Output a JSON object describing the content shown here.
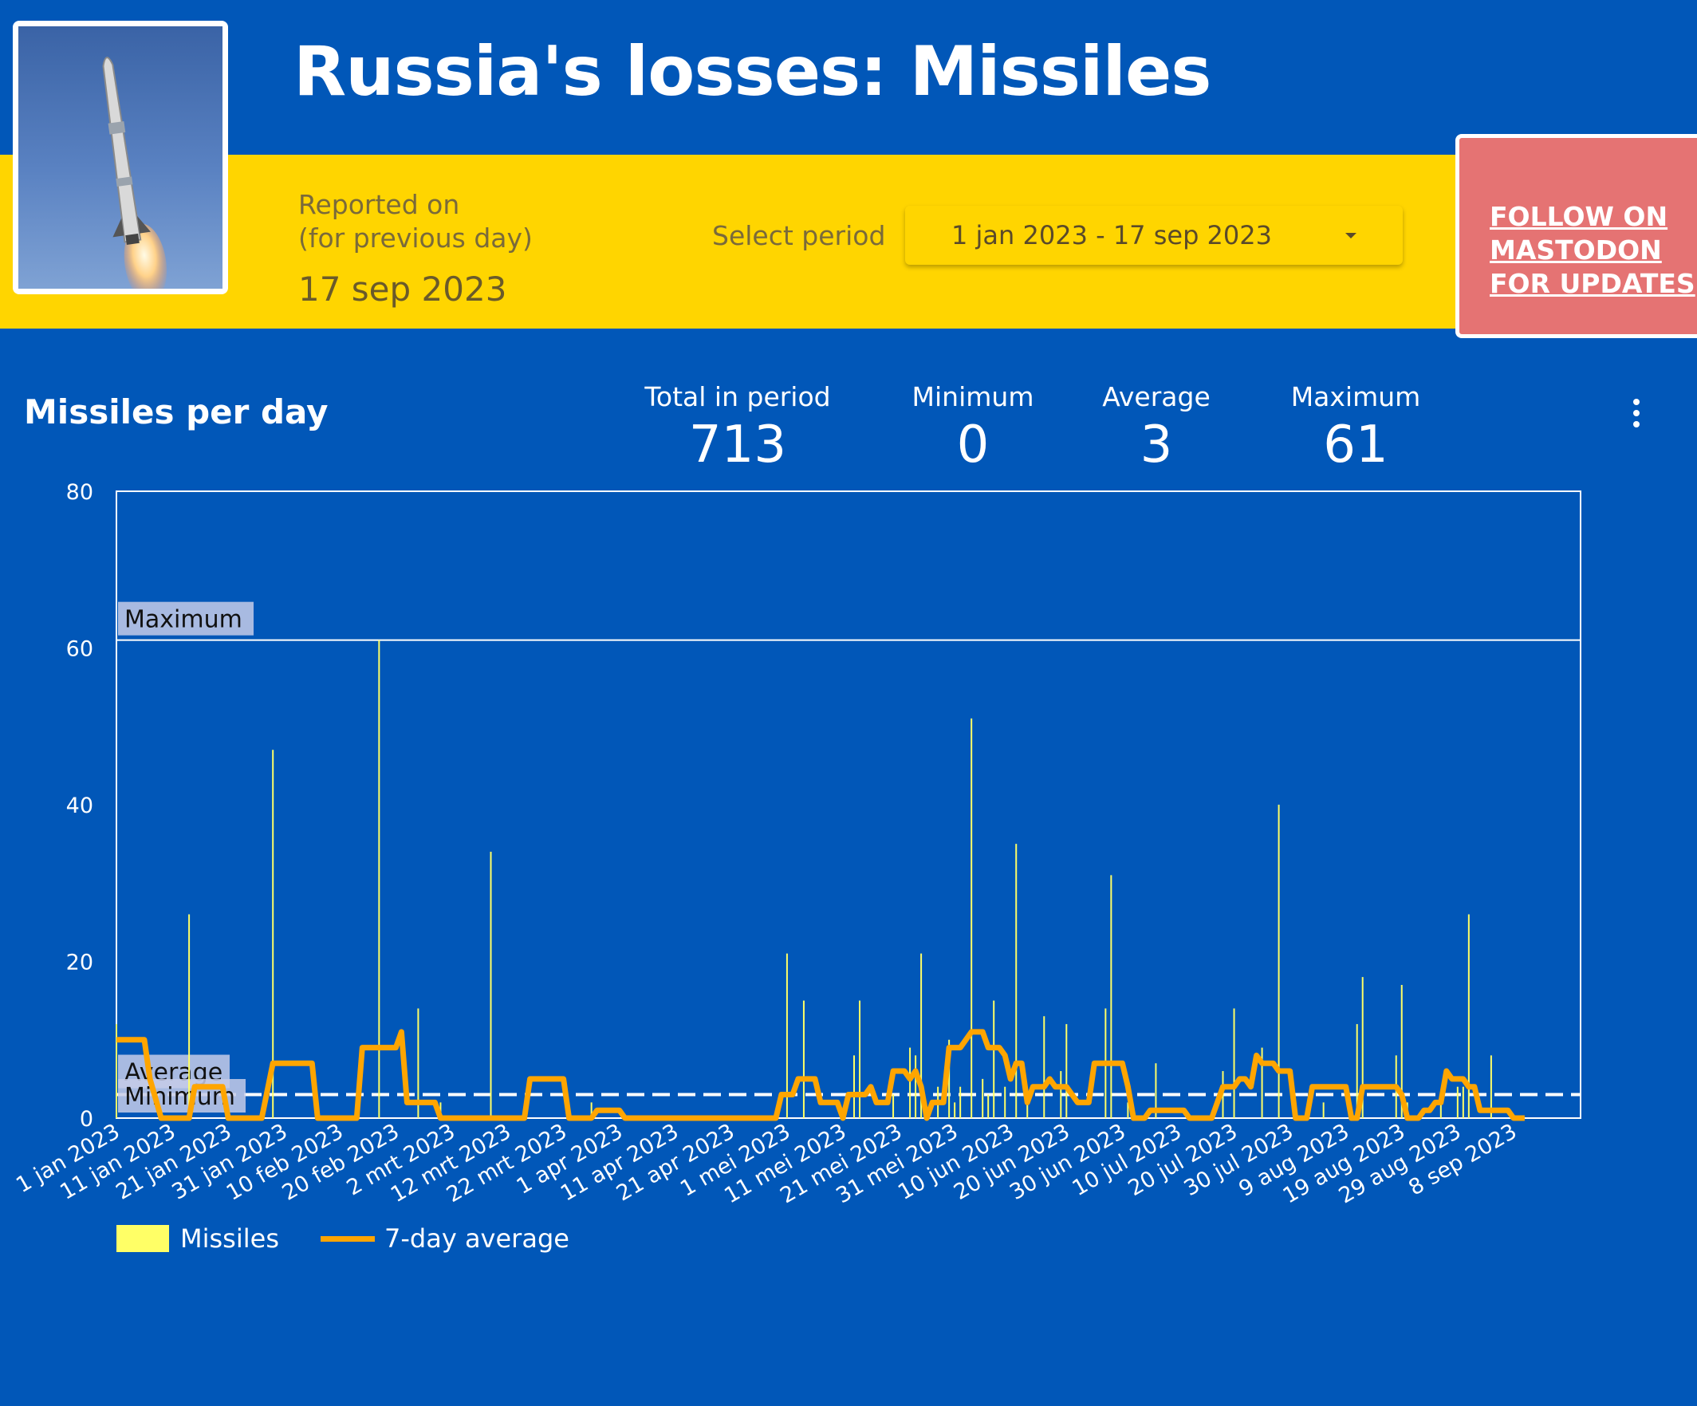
{
  "header": {
    "title": "Russia's losses:  Missiles",
    "reported_label_1": "Reported on",
    "reported_label_2": "(for previous day)",
    "reported_date": "17 sep 2023",
    "select_label": "Select period",
    "select_value": "1 jan 2023 - 17 sep 2023",
    "follow_text": "FOLLOW ON MASTODON FOR UPDATES"
  },
  "colors": {
    "background": "#0157b8",
    "band": "#ffd500",
    "follow_button": "#e57373",
    "bars": "#ffff66",
    "average_line": "#ffa500"
  },
  "section": {
    "title": "Missiles per day"
  },
  "stats": [
    {
      "label": "Total in period",
      "value": "713"
    },
    {
      "label": "Minimum",
      "value": "0"
    },
    {
      "label": "Average",
      "value": "3"
    },
    {
      "label": "Maximum",
      "value": "61"
    }
  ],
  "legend": {
    "bars": "Missiles",
    "line": "7-day average"
  },
  "chart_data": {
    "type": "bar",
    "start_date": "1 jan 2023",
    "x_tick_labels": [
      "1 jan 2023",
      "11 jan 2023",
      "21 jan 2023",
      "31 jan 2023",
      "10 feb 2023",
      "20 feb 2023",
      "2 mrt 2023",
      "12 mrt 2023",
      "22 mrt 2023",
      "1 apr 2023",
      "11 apr 2023",
      "21 apr 2023",
      "1 mei 2023",
      "11 mei 2023",
      "21 mei 2023",
      "31 mei 2023",
      "10 jun 2023",
      "20 jun 2023",
      "30 jun 2023",
      "10 jul 2023",
      "20 jul 2023",
      "30 jul 2023",
      "9 aug 2023",
      "19 aug 2023",
      "29 aug 2023",
      "8 sep 2023"
    ],
    "y_ticks": [
      0,
      20,
      40,
      60,
      80
    ],
    "ylim": [
      0,
      80
    ],
    "reference_lines": [
      {
        "label": "Maximum",
        "value": 61,
        "style": "solid"
      },
      {
        "label": "Average",
        "value": 3,
        "style": "dashed"
      },
      {
        "label": "Minimum",
        "value": 0,
        "style": "dashed"
      }
    ],
    "series": [
      {
        "name": "Missiles",
        "type": "bar",
        "points": [
          [
            "1 jan 2023",
            12
          ],
          [
            "14 jan 2023",
            26
          ],
          [
            "29 jan 2023",
            47
          ],
          [
            "17 feb 2023",
            61
          ],
          [
            "24 feb 2023",
            14
          ],
          [
            "28 feb 2023",
            2
          ],
          [
            "9 mrt 2023",
            34
          ],
          [
            "27 mrt 2023",
            2
          ],
          [
            "1 mei 2023",
            21
          ],
          [
            "4 mei 2023",
            15
          ],
          [
            "13 mei 2023",
            8
          ],
          [
            "14 mei 2023",
            15
          ],
          [
            "20 mei 2023",
            3
          ],
          [
            "23 mei 2023",
            9
          ],
          [
            "24 mei 2023",
            8
          ],
          [
            "25 mei 2023",
            21
          ],
          [
            "28 mei 2023",
            4
          ],
          [
            "30 mei 2023",
            10
          ],
          [
            "31 mei 2023",
            2
          ],
          [
            "1 jun 2023",
            4
          ],
          [
            "3 jun 2023",
            51
          ],
          [
            "5 jun 2023",
            5
          ],
          [
            "6 jun 2023",
            3
          ],
          [
            "7 jun 2023",
            15
          ],
          [
            "9 jun 2023",
            4
          ],
          [
            "11 jun 2023",
            35
          ],
          [
            "13 jun 2023",
            2
          ],
          [
            "16 jun 2023",
            13
          ],
          [
            "19 jun 2023",
            6
          ],
          [
            "20 jun 2023",
            12
          ],
          [
            "27 jun 2023",
            14
          ],
          [
            "28 jun 2023",
            31
          ],
          [
            "1 jul 2023",
            2
          ],
          [
            "6 jul 2023",
            7
          ],
          [
            "18 jul 2023",
            6
          ],
          [
            "20 jul 2023",
            14
          ],
          [
            "25 jul 2023",
            9
          ],
          [
            "28 jul 2023",
            40
          ],
          [
            "5 aug 2023",
            2
          ],
          [
            "11 aug 2023",
            12
          ],
          [
            "12 aug 2023",
            18
          ],
          [
            "18 aug 2023",
            8
          ],
          [
            "19 aug 2023",
            17
          ],
          [
            "20 aug 2023",
            2
          ],
          [
            "26 aug 2023",
            3
          ],
          [
            "29 aug 2023",
            4
          ],
          [
            "30 aug 2023",
            4
          ],
          [
            "31 aug 2023",
            26
          ],
          [
            "4 sep 2023",
            8
          ]
        ]
      },
      {
        "name": "7-day average",
        "type": "line",
        "points": [
          [
            "1 jan 2023",
            10
          ],
          [
            "6 jan 2023",
            10
          ],
          [
            "7 jan 2023",
            5
          ],
          [
            "9 jan 2023",
            0
          ],
          [
            "14 jan 2023",
            0
          ],
          [
            "15 jan 2023",
            4
          ],
          [
            "20 jan 2023",
            4
          ],
          [
            "21 jan 2023",
            0
          ],
          [
            "27 jan 2023",
            0
          ],
          [
            "29 jan 2023",
            7
          ],
          [
            "5 feb 2023",
            7
          ],
          [
            "6 feb 2023",
            0
          ],
          [
            "13 feb 2023",
            0
          ],
          [
            "14 feb 2023",
            9
          ],
          [
            "20 feb 2023",
            9
          ],
          [
            "21 feb 2023",
            11
          ],
          [
            "22 feb 2023",
            2
          ],
          [
            "27 feb 2023",
            2
          ],
          [
            "28 feb 2023",
            0
          ],
          [
            "15 mrt 2023",
            0
          ],
          [
            "16 mrt 2023",
            5
          ],
          [
            "22 mrt 2023",
            5
          ],
          [
            "23 mrt 2023",
            0
          ],
          [
            "27 mrt 2023",
            0
          ],
          [
            "28 mrt 2023",
            1
          ],
          [
            "1 apr 2023",
            1
          ],
          [
            "2 apr 2023",
            0
          ],
          [
            "29 apr 2023",
            0
          ],
          [
            "30 apr 2023",
            3
          ],
          [
            "2 mei 2023",
            3
          ],
          [
            "3 mei 2023",
            5
          ],
          [
            "6 mei 2023",
            5
          ],
          [
            "7 mei 2023",
            2
          ],
          [
            "10 mei 2023",
            2
          ],
          [
            "11 mei 2023",
            0
          ],
          [
            "12 mei 2023",
            3
          ],
          [
            "15 mei 2023",
            3
          ],
          [
            "16 mei 2023",
            4
          ],
          [
            "17 mei 2023",
            2
          ],
          [
            "19 mei 2023",
            2
          ],
          [
            "20 mei 2023",
            6
          ],
          [
            "22 mei 2023",
            6
          ],
          [
            "23 mei 2023",
            5
          ],
          [
            "24 mei 2023",
            6
          ],
          [
            "25 mei 2023",
            4
          ],
          [
            "26 mei 2023",
            0
          ],
          [
            "27 mei 2023",
            2
          ],
          [
            "29 mei 2023",
            2
          ],
          [
            "30 mei 2023",
            9
          ],
          [
            "1 jun 2023",
            9
          ],
          [
            "3 jun 2023",
            11
          ],
          [
            "5 jun 2023",
            11
          ],
          [
            "6 jun 2023",
            9
          ],
          [
            "8 jun 2023",
            9
          ],
          [
            "9 jun 2023",
            8
          ],
          [
            "10 jun 2023",
            5
          ],
          [
            "11 jun 2023",
            7
          ],
          [
            "12 jun 2023",
            7
          ],
          [
            "13 jun 2023",
            2
          ],
          [
            "14 jun 2023",
            4
          ],
          [
            "16 jun 2023",
            4
          ],
          [
            "17 jun 2023",
            5
          ],
          [
            "18 jun 2023",
            4
          ],
          [
            "20 jun 2023",
            4
          ],
          [
            "21 jun 2023",
            3
          ],
          [
            "22 jun 2023",
            2
          ],
          [
            "24 jun 2023",
            2
          ],
          [
            "25 jun 2023",
            7
          ],
          [
            "30 jun 2023",
            7
          ],
          [
            "1 jul 2023",
            4
          ],
          [
            "2 jul 2023",
            0
          ],
          [
            "4 jul 2023",
            0
          ],
          [
            "5 jul 2023",
            1
          ],
          [
            "11 jul 2023",
            1
          ],
          [
            "12 jul 2023",
            0
          ],
          [
            "16 jul 2023",
            0
          ],
          [
            "17 jul 2023",
            2
          ],
          [
            "18 jul 2023",
            4
          ],
          [
            "20 jul 2023",
            4
          ],
          [
            "21 jul 2023",
            5
          ],
          [
            "22 jul 2023",
            5
          ],
          [
            "23 jul 2023",
            4
          ],
          [
            "24 jul 2023",
            8
          ],
          [
            "25 jul 2023",
            7
          ],
          [
            "27 jul 2023",
            7
          ],
          [
            "28 jul 2023",
            6
          ],
          [
            "30 jul 2023",
            6
          ],
          [
            "31 jul 2023",
            0
          ],
          [
            "2 aug 2023",
            0
          ],
          [
            "3 aug 2023",
            4
          ],
          [
            "9 aug 2023",
            4
          ],
          [
            "10 aug 2023",
            0
          ],
          [
            "11 aug 2023",
            0
          ],
          [
            "12 aug 2023",
            4
          ],
          [
            "18 aug 2023",
            4
          ],
          [
            "19 aug 2023",
            3
          ],
          [
            "20 aug 2023",
            0
          ],
          [
            "22 aug 2023",
            0
          ],
          [
            "23 aug 2023",
            1
          ],
          [
            "24 aug 2023",
            1
          ],
          [
            "25 aug 2023",
            2
          ],
          [
            "26 aug 2023",
            2
          ],
          [
            "27 aug 2023",
            6
          ],
          [
            "28 aug 2023",
            5
          ],
          [
            "30 aug 2023",
            5
          ],
          [
            "31 aug 2023",
            4
          ],
          [
            "1 sep 2023",
            4
          ],
          [
            "2 sep 2023",
            1
          ],
          [
            "7 sep 2023",
            1
          ],
          [
            "8 sep 2023",
            0
          ],
          [
            "10 sep 2023",
            0
          ]
        ]
      }
    ],
    "grid": false,
    "legend_position": "bottom-left"
  }
}
